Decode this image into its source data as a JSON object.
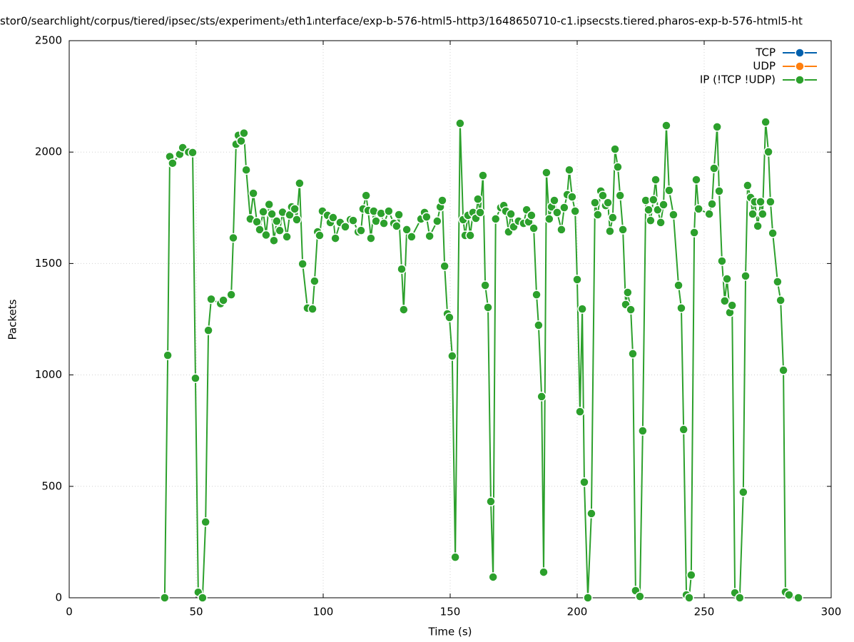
{
  "chart_data": {
    "type": "line",
    "title": "stor0/searchlight/corpus/tiered/ipsec/sts/experiment₃/eth1ᵢnterface/exp-b-576-html5-http3/1648650710-c1.ipsecsts.tiered.pharos-exp-b-576-html5-ht",
    "x_label": "Time (s)",
    "y_label": "Packets",
    "xlim": [
      0,
      300
    ],
    "xticks": [
      0,
      50,
      100,
      150,
      200,
      250,
      300
    ],
    "ylim": [
      0,
      2500
    ],
    "yticks": [
      0,
      500,
      1000,
      1500,
      2000,
      2500
    ],
    "grid": true,
    "legend": "top-right",
    "series": [
      {
        "name": "TCP",
        "color": "#0060ad",
        "x": [],
        "values": []
      },
      {
        "name": "UDP",
        "color": "#ff7f0e",
        "x": [],
        "values": []
      },
      {
        "name": "IP (!TCP  !UDP)",
        "color": "#2ca02c",
        "x": [
          37.6,
          38.8,
          39.6,
          40.7,
          43.5,
          44.7,
          47,
          48.6,
          49.7,
          50.8,
          52.5,
          53.7,
          54.8,
          55.9,
          59.6,
          60.7,
          63.8,
          64.6,
          65.7,
          66.6,
          67.7,
          68.8,
          69.7,
          71.3,
          72.5,
          73.9,
          75,
          76.4,
          77.5,
          78.7,
          79.8,
          80.6,
          81.7,
          82.9,
          84,
          85.7,
          86.8,
          87.6,
          88.8,
          89.6,
          90.7,
          91.9,
          93.8,
          95.8,
          96.6,
          97.8,
          98.6,
          99.7,
          101.7,
          102.8,
          103.9,
          104.8,
          106.7,
          108.7,
          110.7,
          111.8,
          113.8,
          114.9,
          115.7,
          116.9,
          117.7,
          118.8,
          119.9,
          120.8,
          122.8,
          123.9,
          125.8,
          127.8,
          128.9,
          129.8,
          130.9,
          131.7,
          132.9,
          134.8,
          138.5,
          139.9,
          140.7,
          141.9,
          144.9,
          146.1,
          146.9,
          147.8,
          148.9,
          149.7,
          150.8,
          152,
          153.9,
          155.1,
          155.9,
          157,
          157.9,
          159,
          160.1,
          160.9,
          161.8,
          162.9,
          163.8,
          164.9,
          166,
          166.9,
          167.9,
          169.9,
          171.1,
          171.9,
          173,
          173.9,
          175,
          176.9,
          178.9,
          180.1,
          180.9,
          182,
          182.9,
          184,
          184.8,
          186,
          186.8,
          187.9,
          189,
          189.9,
          191,
          192.1,
          193.8,
          194.9,
          196.1,
          196.9,
          198,
          199.2,
          200,
          201.1,
          202,
          202.8,
          204.2,
          205.6,
          207,
          208.1,
          209.3,
          210.1,
          211.2,
          212.1,
          212.9,
          214,
          214.9,
          216,
          216.9,
          218,
          219.1,
          219.9,
          221.1,
          221.9,
          223,
          224.7,
          225.8,
          227,
          228.1,
          228.9,
          230,
          230.9,
          231.7,
          232.9,
          234,
          235.1,
          236.2,
          237.9,
          239.9,
          241,
          241.9,
          243,
          244.1,
          244.9,
          246.1,
          246.9,
          247.8,
          252,
          253.1,
          253.9,
          255.1,
          255.9,
          257,
          258.1,
          259,
          260.1,
          261,
          262.1,
          264,
          265.4,
          266.3,
          267.1,
          268.3,
          269.1,
          269.9,
          271.1,
          272.2,
          273,
          274.2,
          275.3,
          276.1,
          277,
          278.9,
          280.1,
          281.2,
          282,
          283.4,
          287.1
        ],
        "values": [
          0,
          1088,
          1980,
          1950,
          1990,
          2020,
          2000,
          1998,
          985,
          25,
          0,
          340,
          1200,
          1340,
          1320,
          1335,
          1360,
          1615,
          2035,
          2075,
          2050,
          2085,
          1920,
          1700,
          1815,
          1687,
          1652,
          1732,
          1628,
          1765,
          1722,
          1603,
          1690,
          1648,
          1730,
          1620,
          1718,
          1754,
          1745,
          1697,
          1860,
          1498,
          1300,
          1296,
          1421,
          1642,
          1626,
          1735,
          1716,
          1684,
          1706,
          1613,
          1684,
          1665,
          1697,
          1693,
          1642,
          1648,
          1745,
          1805,
          1738,
          1613,
          1735,
          1690,
          1725,
          1680,
          1735,
          1680,
          1668,
          1719,
          1475,
          1293,
          1652,
          1620,
          1700,
          1729,
          1709,
          1623,
          1690,
          1754,
          1783,
          1488,
          1274,
          1258,
          1085,
          182,
          2129,
          1697,
          1626,
          1716,
          1626,
          1729,
          1703,
          1789,
          1729,
          1895,
          1402,
          1303,
          432,
          93,
          1700,
          1751,
          1760,
          1735,
          1642,
          1722,
          1665,
          1690,
          1680,
          1741,
          1687,
          1716,
          1658,
          1360,
          1223,
          903,
          115,
          1908,
          1700,
          1754,
          1783,
          1729,
          1652,
          1751,
          1809,
          1920,
          1799,
          1735,
          1428,
          835,
          1296,
          519,
          0,
          378,
          1773,
          1719,
          1825,
          1805,
          1760,
          1773,
          1645,
          1706,
          2013,
          1933,
          1805,
          1652,
          1316,
          1370,
          1293,
          1095,
          32,
          6,
          749,
          1783,
          1741,
          1693,
          1786,
          1876,
          1741,
          1684,
          1764,
          2119,
          1828,
          1719,
          1402,
          1300,
          755,
          13,
          0,
          102,
          1639,
          1876,
          1745,
          1722,
          1767,
          1927,
          2113,
          1825,
          1511,
          1332,
          1431,
          1280,
          1312,
          22,
          0,
          474,
          1444,
          1850,
          1796,
          1722,
          1777,
          1668,
          1777,
          1722,
          2135,
          2001,
          1777,
          1636,
          1418,
          1335,
          1021,
          26,
          13,
          0
        ]
      }
    ]
  }
}
